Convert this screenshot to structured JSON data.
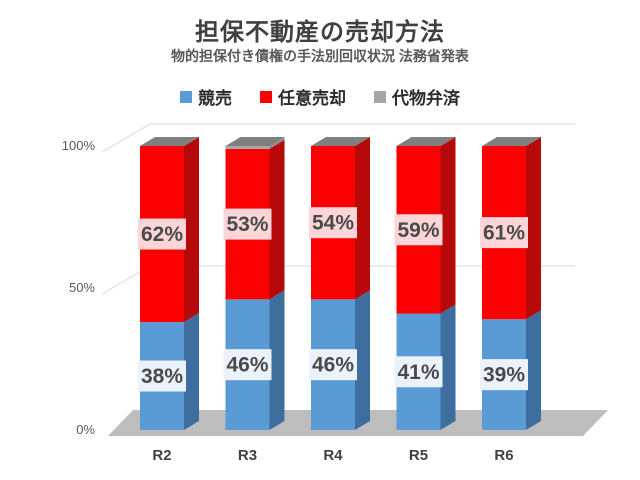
{
  "chart_data": {
    "type": "bar",
    "variant": "3d-100pct-stacked-column",
    "title": "担保不動産の売却方法",
    "subtitle": "物的担保付き債権の手法別回収状況 法務省発表",
    "categories": [
      "R2",
      "R3",
      "R4",
      "R5",
      "R6"
    ],
    "series": [
      {
        "name": "競売",
        "values": [
          38,
          46,
          46,
          41,
          39
        ],
        "labels": [
          "38%",
          "46%",
          "46%",
          "41%",
          "39%"
        ],
        "color": "#5B9BD5",
        "side_color": "#3E6E9E",
        "label_bg": "#EBF2FA",
        "show_labels": true
      },
      {
        "name": "任意売却",
        "values": [
          62,
          53,
          54,
          59,
          61
        ],
        "labels": [
          "62%",
          "53%",
          "54%",
          "59%",
          "61%"
        ],
        "color": "#FB0000",
        "side_color": "#B60A0A",
        "label_bg": "#FBD5D7",
        "show_labels": true
      },
      {
        "name": "代物弁済",
        "values": [
          0,
          1,
          0,
          0,
          0
        ],
        "labels": [
          "0%",
          "1%",
          "0%",
          "0%",
          "0%"
        ],
        "color": "#A6A6A6",
        "side_color": "#8C8C8C",
        "label_bg": "#F2F2F2",
        "show_labels": false
      }
    ],
    "y_ticks": [
      {
        "value": 0,
        "label": "0%"
      },
      {
        "value": 50,
        "label": "50%"
      },
      {
        "value": 100,
        "label": "100%"
      }
    ],
    "ylim": [
      0,
      100
    ],
    "grid": true,
    "legend_position": "top",
    "colors": {
      "top_face": "#7F7F7F",
      "floor": "#BDBDBD",
      "gridline": "#D9D9D9",
      "axis_text": "#595959",
      "category_text": "#404040",
      "label_text": "#4A4A4A"
    }
  }
}
